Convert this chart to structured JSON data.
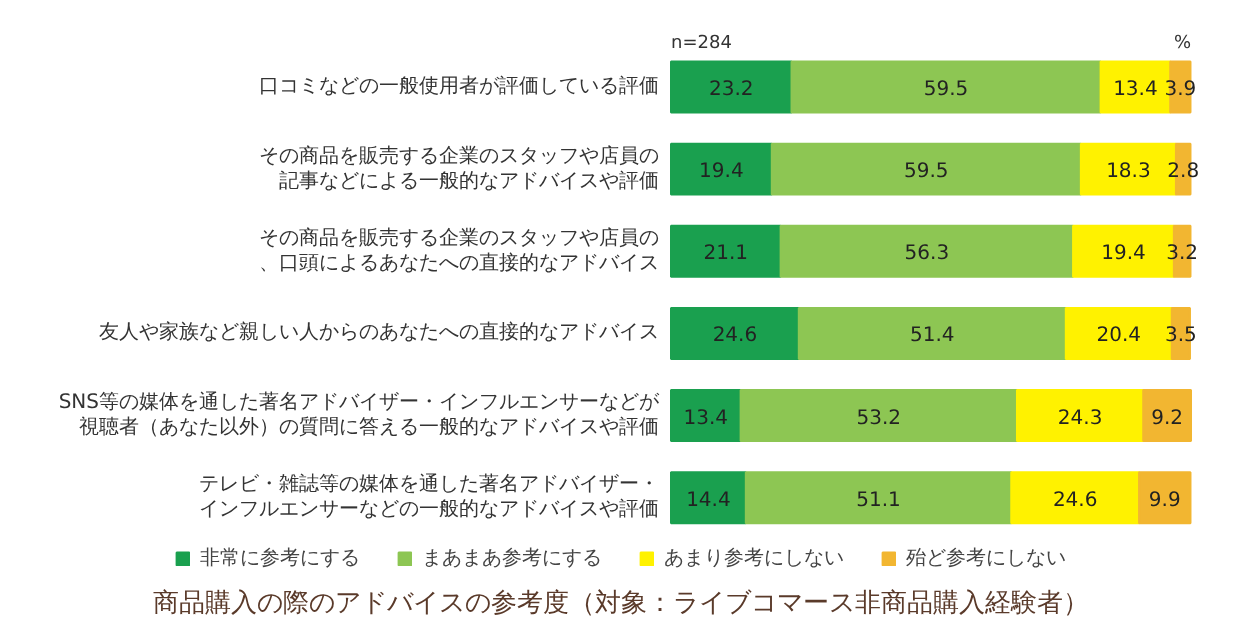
{
  "chart_data": {
    "type": "bar",
    "orientation": "horizontal",
    "stacked": true,
    "title": "商品購入の際のアドバイスの参考度（対象：ライブコマース非商品購入経験者）",
    "categories": [
      "口コミなどの一般使用者が評価している評価",
      "その商品を販売する企業のスタッフや店員の記事などによる一般的なアドバイスや評価",
      "その商品を販売する企業のスタッフや店員の、口頭によるあなたへの直接的なアドバイス",
      "友人や家族など親しい人からのあなたへの直接的なアドバイス",
      "SNS等の媒体を通した著名アドバイザー・インフルエンサーなどが視聴者（あなた以外）の質問に答える一般的なアドバイスや評価",
      "テレビ・雑誌等の媒体を通した著名アドバイザー・インフルエンサーなどの一般的なアドバイスや評価"
    ],
    "series": [
      {
        "name": "非常に参考にする",
        "color": "#1aa04f",
        "values": [
          23.2,
          19.4,
          21.1,
          24.6,
          13.4,
          14.4
        ]
      },
      {
        "name": "まあまあ参考にする",
        "color": "#8dc653",
        "values": [
          59.5,
          59.5,
          56.3,
          51.4,
          53.2,
          51.1
        ]
      },
      {
        "name": "あまり参考にしない",
        "color": "#fff200",
        "values": [
          13.4,
          18.3,
          19.4,
          20.4,
          24.3,
          24.6
        ]
      },
      {
        "name": "殆ど参考にしない",
        "color": "#f2b631",
        "values": [
          3.9,
          2.8,
          3.2,
          3.5,
          9.2,
          9.9
        ]
      }
    ],
    "data_labels": true,
    "legend": "bottom",
    "annotations": [
      "n=284",
      "%"
    ]
  }
}
